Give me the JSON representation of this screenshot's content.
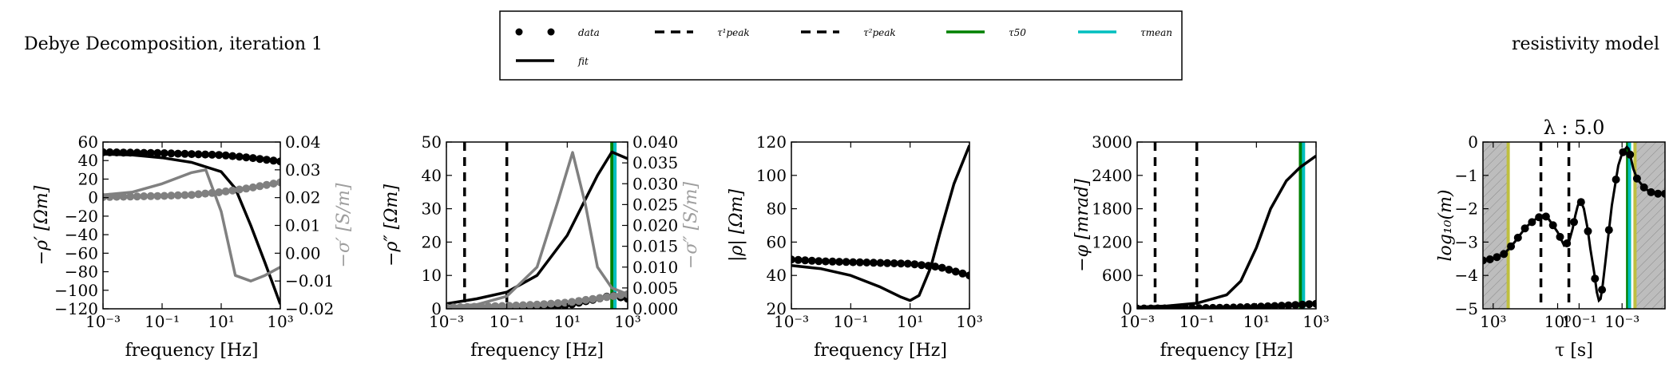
{
  "figure": {
    "left_title": "Debye Decomposition, iteration 1",
    "right_title": "resistivity model"
  },
  "legend": {
    "entries": [
      {
        "label": "data",
        "style": "dots",
        "color": "#000000"
      },
      {
        "label": "τ¹peak",
        "style": "dashed",
        "color": "#000000"
      },
      {
        "label": "τ²peak",
        "style": "dashed",
        "color": "#000000"
      },
      {
        "label": "τ50",
        "style": "solid",
        "color": "#008000"
      },
      {
        "label": "τmean",
        "style": "solid",
        "color": "#00bfbf"
      },
      {
        "label": "fit",
        "style": "solid",
        "color": "#000000"
      }
    ]
  },
  "chart_data": [
    {
      "type": "line",
      "xscale": "log",
      "xlabel": "frequency [Hz]",
      "ylabel": "−ρ′ [Ωm]",
      "y2label": "−σ′ [S/m]",
      "xlim": [
        0.001,
        1000
      ],
      "ylim": [
        -120,
        60
      ],
      "y2lim": [
        -0.02,
        0.04
      ],
      "xticks": [
        0.001,
        0.1,
        10,
        1000
      ],
      "xticklabels": [
        "10⁻³",
        "10⁻¹",
        "10¹",
        "10³"
      ],
      "yticks": [
        60,
        40,
        20,
        0,
        -20,
        -40,
        -60,
        -80,
        -100,
        -120
      ],
      "yticklabels": [
        "60",
        "40",
        "20",
        "0",
        "−20",
        "−40",
        "−60",
        "−80",
        "−100",
        "−120"
      ],
      "y2ticks": [
        0.04,
        0.03,
        0.02,
        0.01,
        0.0,
        -0.01,
        -0.02
      ],
      "y2ticklabels": [
        "0.04",
        "0.03",
        "0.02",
        "0.01",
        "0.00",
        "−0.01",
        "−0.02"
      ],
      "series": [
        {
          "axis": "y",
          "style": "dots",
          "color": "#000000",
          "x": [
            0.001,
            0.01,
            0.1,
            1,
            10,
            100,
            1000
          ],
          "y": [
            49,
            48.5,
            48,
            47,
            46,
            43,
            39
          ]
        },
        {
          "axis": "y",
          "style": "line",
          "color": "#000000",
          "x": [
            0.001,
            0.01,
            0.1,
            1,
            10,
            30,
            100,
            300,
            1000
          ],
          "y": [
            47,
            46,
            43,
            38,
            28,
            10,
            -30,
            -70,
            -115
          ]
        },
        {
          "axis": "y2",
          "style": "dots",
          "color": "#808080",
          "x": [
            0.001,
            0.01,
            0.1,
            1,
            10,
            100,
            1000
          ],
          "y": [
            0.0202,
            0.0204,
            0.0206,
            0.021,
            0.022,
            0.0235,
            0.0255
          ]
        },
        {
          "axis": "y2",
          "style": "line",
          "color": "#808080",
          "x": [
            0.001,
            0.01,
            0.1,
            1,
            3,
            10,
            30,
            100,
            300,
            1000
          ],
          "y": [
            0.021,
            0.022,
            0.025,
            0.029,
            0.03,
            0.015,
            -0.008,
            -0.01,
            -0.008,
            -0.005
          ]
        }
      ]
    },
    {
      "type": "line",
      "xscale": "log",
      "xlabel": "frequency [Hz]",
      "ylabel": "−ρ″ [Ωm]",
      "y2label": "−σ″ [S/m]",
      "xlim": [
        0.001,
        1000
      ],
      "ylim": [
        0,
        50
      ],
      "y2lim": [
        0,
        0.04
      ],
      "xticks": [
        0.001,
        0.1,
        10,
        1000
      ],
      "xticklabels": [
        "10⁻³",
        "10⁻¹",
        "10¹",
        "10³"
      ],
      "yticks": [
        50,
        40,
        30,
        20,
        10,
        0
      ],
      "yticklabels": [
        "50",
        "40",
        "30",
        "20",
        "10",
        "0"
      ],
      "y2ticks": [
        0.04,
        0.035,
        0.03,
        0.025,
        0.02,
        0.015,
        0.01,
        0.005,
        0.0
      ],
      "y2ticklabels": [
        "0.040",
        "0.035",
        "0.030",
        "0.025",
        "0.020",
        "0.015",
        "0.010",
        "0.005",
        "0.000"
      ],
      "vlines": [
        {
          "x": 0.004,
          "style": "dashed",
          "color": "#000000"
        },
        {
          "x": 0.1,
          "style": "dashed",
          "color": "#000000"
        },
        {
          "x": 300,
          "style": "solid",
          "color": "#008000"
        },
        {
          "x": 380,
          "style": "solid",
          "color": "#00bfbf"
        }
      ],
      "series": [
        {
          "axis": "y",
          "style": "dots",
          "color": "#000000",
          "x": [
            0.001,
            0.01,
            0.1,
            1,
            10,
            30,
            100,
            300,
            1000
          ],
          "y": [
            0.1,
            0.2,
            0.3,
            0.5,
            1,
            2,
            3,
            4,
            3
          ]
        },
        {
          "axis": "y",
          "style": "line",
          "color": "#000000",
          "x": [
            0.001,
            0.01,
            0.1,
            1,
            10,
            100,
            300,
            1000
          ],
          "y": [
            1.5,
            3,
            5,
            10,
            22,
            40,
            47,
            45
          ]
        },
        {
          "axis": "y2",
          "style": "dots",
          "color": "#808080",
          "x": [
            0.001,
            0.01,
            0.1,
            1,
            10,
            100,
            1000
          ],
          "y": [
            0.0003,
            0.0005,
            0.0007,
            0.001,
            0.0015,
            0.0025,
            0.0035
          ]
        },
        {
          "axis": "y2",
          "style": "line",
          "color": "#808080",
          "x": [
            0.001,
            0.01,
            0.1,
            1,
            5,
            15,
            40,
            100,
            300,
            1000
          ],
          "y": [
            0.0005,
            0.001,
            0.003,
            0.01,
            0.026,
            0.0375,
            0.025,
            0.01,
            0.005,
            0.0035
          ]
        }
      ]
    },
    {
      "type": "line",
      "xscale": "log",
      "xlabel": "frequency [Hz]",
      "ylabel": "|ρ| [Ωm]",
      "xlim": [
        0.001,
        1000
      ],
      "ylim": [
        20,
        120
      ],
      "xticks": [
        0.001,
        0.1,
        10,
        1000
      ],
      "xticklabels": [
        "10⁻³",
        "10⁻¹",
        "10¹",
        "10³"
      ],
      "yticks": [
        120,
        100,
        80,
        60,
        40,
        20
      ],
      "yticklabels": [
        "120",
        "100",
        "80",
        "60",
        "40",
        "20"
      ],
      "series": [
        {
          "axis": "y",
          "style": "dots",
          "color": "#000000",
          "x": [
            0.001,
            0.01,
            0.1,
            1,
            10,
            100,
            1000
          ],
          "y": [
            49.5,
            48.5,
            48,
            47.5,
            47,
            45,
            40
          ]
        },
        {
          "axis": "y",
          "style": "line",
          "color": "#000000",
          "x": [
            0.001,
            0.01,
            0.1,
            1,
            5,
            10,
            20,
            50,
            100,
            300,
            1000
          ],
          "y": [
            46,
            44,
            40,
            33,
            27,
            25,
            28,
            45,
            65,
            95,
            118
          ]
        }
      ]
    },
    {
      "type": "line",
      "xscale": "log",
      "xlabel": "frequency [Hz]",
      "ylabel": "−φ [mrad]",
      "xlim": [
        0.001,
        1000
      ],
      "ylim": [
        0,
        3000
      ],
      "xticks": [
        0.001,
        0.1,
        10,
        1000
      ],
      "xticklabels": [
        "10⁻³",
        "10⁻¹",
        "10¹",
        "10³"
      ],
      "yticks": [
        3000,
        2400,
        1800,
        1200,
        600,
        0
      ],
      "yticklabels": [
        "3000",
        "2400",
        "1800",
        "1200",
        "600",
        "0"
      ],
      "vlines": [
        {
          "x": 0.004,
          "style": "dashed",
          "color": "#000000"
        },
        {
          "x": 0.1,
          "style": "dashed",
          "color": "#000000"
        },
        {
          "x": 300,
          "style": "solid",
          "color": "#008000"
        },
        {
          "x": 380,
          "style": "solid",
          "color": "#00bfbf"
        }
      ],
      "series": [
        {
          "axis": "y",
          "style": "dots",
          "color": "#000000",
          "x": [
            0.001,
            0.01,
            0.1,
            1,
            10,
            100,
            1000
          ],
          "y": [
            5,
            8,
            12,
            20,
            35,
            60,
            90
          ]
        },
        {
          "axis": "y",
          "style": "line",
          "color": "#000000",
          "x": [
            0.001,
            0.01,
            0.1,
            1,
            3,
            10,
            30,
            100,
            300,
            1000
          ],
          "y": [
            30,
            50,
            100,
            250,
            500,
            1100,
            1800,
            2300,
            2550,
            2750
          ]
        }
      ]
    },
    {
      "type": "line",
      "title": "λ : 5.0",
      "xscale": "log",
      "xinverted": true,
      "xlabel": "τ [s]",
      "ylabel": "log₁₀(m)",
      "xlim": [
        3000,
        1e-05
      ],
      "ylim": [
        -5,
        0
      ],
      "xticks": [
        1000,
        1,
        0.1,
        0.001
      ],
      "xticklabels": [
        "10³",
        "10⁰",
        "10⁻¹",
        "10⁻³"
      ],
      "yticks": [
        0,
        -1,
        -2,
        -3,
        -4,
        -5
      ],
      "yticklabels": [
        "0",
        "−1",
        "−2",
        "−3",
        "−4",
        "−5"
      ],
      "shaded": [
        {
          "from": 3000,
          "to": 200,
          "color": "#bdbdbd",
          "hatch": true
        },
        {
          "from": 0.00025,
          "to": 1e-05,
          "color": "#bdbdbd",
          "hatch": true
        }
      ],
      "vlines": [
        {
          "x": 200,
          "style": "solid",
          "color": "#bfbf40"
        },
        {
          "x": 0.00025,
          "style": "solid",
          "color": "#bfbf40"
        },
        {
          "x": 6,
          "style": "dashed",
          "color": "#000000"
        },
        {
          "x": 0.3,
          "style": "dashed",
          "color": "#000000"
        },
        {
          "x": 0.00055,
          "style": "solid",
          "color": "#008000"
        },
        {
          "x": 0.00045,
          "style": "solid",
          "color": "#00bfbf"
        }
      ],
      "series": [
        {
          "axis": "y",
          "style": "dots",
          "color": "#000000",
          "x": [
            3000,
            1000,
            300,
            100,
            30,
            10,
            5,
            3,
            1,
            0.5,
            0.3,
            0.2,
            0.15,
            0.12,
            0.1,
            0.08,
            0.06,
            0.04,
            0.03,
            0.02,
            0.015,
            0.012,
            0.01,
            0.008,
            0.006,
            0.004,
            0.003,
            0.002,
            0.0015,
            0.001,
            0.0008,
            0.0006,
            0.0005,
            0.0004,
            0.0003,
            0.0002,
            0.0001,
            5e-05,
            2e-05
          ],
          "y": [
            -3.55,
            -3.5,
            -3.35,
            -3.0,
            -2.55,
            -2.3,
            -2.2,
            -2.25,
            -2.7,
            -3.1,
            -3.0,
            -2.6,
            -2.2,
            -1.95,
            -1.8,
            -1.8,
            -2.0,
            -2.6,
            -3.2,
            -3.9,
            -4.5,
            -4.75,
            -4.7,
            -4.3,
            -3.6,
            -2.6,
            -1.9,
            -1.2,
            -0.7,
            -0.35,
            -0.25,
            -0.15,
            -0.2,
            -0.45,
            -0.8,
            -1.1,
            -1.35,
            -1.5,
            -1.55
          ]
        }
      ]
    }
  ]
}
